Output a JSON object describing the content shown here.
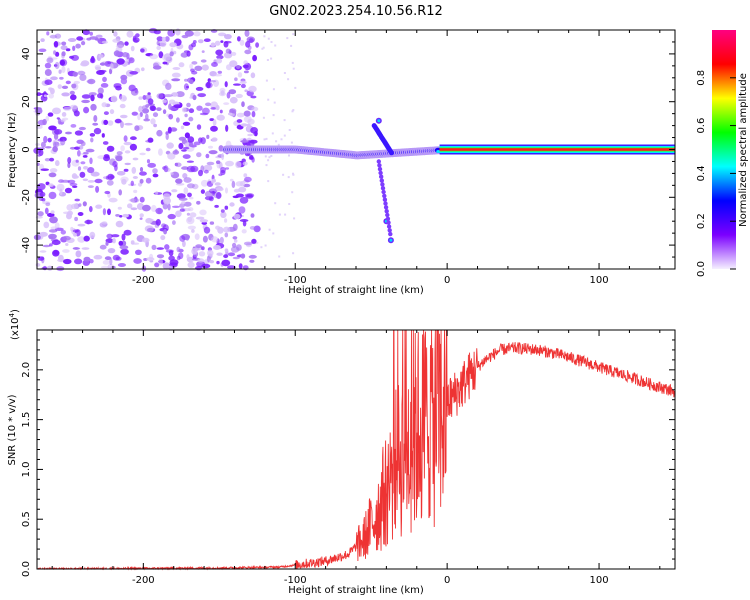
{
  "title": "GN02.2023.254.10.56.R12",
  "chart_data": [
    {
      "type": "heatmap",
      "xlabel": "Height of straight line (km)",
      "ylabel": "Frequency (Hz)",
      "xlim": [
        -270,
        150
      ],
      "ylim": [
        -50,
        50
      ],
      "x_ticks": [
        -200,
        -100,
        0,
        100
      ],
      "y_ticks": [
        40,
        20,
        0,
        -20,
        -40
      ],
      "colorbar": {
        "label": "Normalized spectral amplitude",
        "range": [
          0.0,
          1.0
        ],
        "ticks": [
          "0.0",
          "0.2",
          "0.4",
          "0.6",
          "0.8"
        ],
        "colors": [
          "#f5f0ff",
          "#7b00ff",
          "#0000ff",
          "#00ffff",
          "#00ff00",
          "#ffff00",
          "#ff0000",
          "#ff0080"
        ]
      },
      "features": {
        "noise_region_x": [
          -270,
          -125
        ],
        "strong_line_frequency": 0,
        "strong_line_from_x": 0,
        "branch_points": [
          [
            -45,
            12
          ],
          [
            -40,
            -30
          ],
          [
            -37,
            -38
          ]
        ]
      }
    },
    {
      "type": "line",
      "xlabel": "Height of straight line (km)",
      "ylabel": "SNR (10 * v/v)",
      "multiplier": "(x10",
      "exponent": "4",
      "xlim": [
        -270,
        150
      ],
      "ylim": [
        0,
        2.4
      ],
      "x_ticks": [
        -200,
        -100,
        0,
        100
      ],
      "y_ticks": [
        "0.0",
        "0.5",
        "1.0",
        "1.5",
        "2.0"
      ],
      "color": "#ee3333",
      "envelope": [
        [
          -270,
          0.0
        ],
        [
          -150,
          0.01
        ],
        [
          -110,
          0.02
        ],
        [
          -95,
          0.05
        ],
        [
          -80,
          0.08
        ],
        [
          -65,
          0.15
        ],
        [
          -55,
          0.3
        ],
        [
          -45,
          0.6
        ],
        [
          -35,
          1.0
        ],
        [
          -25,
          1.3
        ],
        [
          -15,
          1.5
        ],
        [
          -5,
          1.6
        ],
        [
          5,
          1.75
        ],
        [
          15,
          1.95
        ],
        [
          25,
          2.1
        ],
        [
          35,
          2.2
        ],
        [
          45,
          2.22
        ],
        [
          60,
          2.2
        ],
        [
          75,
          2.15
        ],
        [
          90,
          2.08
        ],
        [
          105,
          2.0
        ],
        [
          120,
          1.93
        ],
        [
          135,
          1.85
        ],
        [
          150,
          1.78
        ]
      ]
    }
  ]
}
